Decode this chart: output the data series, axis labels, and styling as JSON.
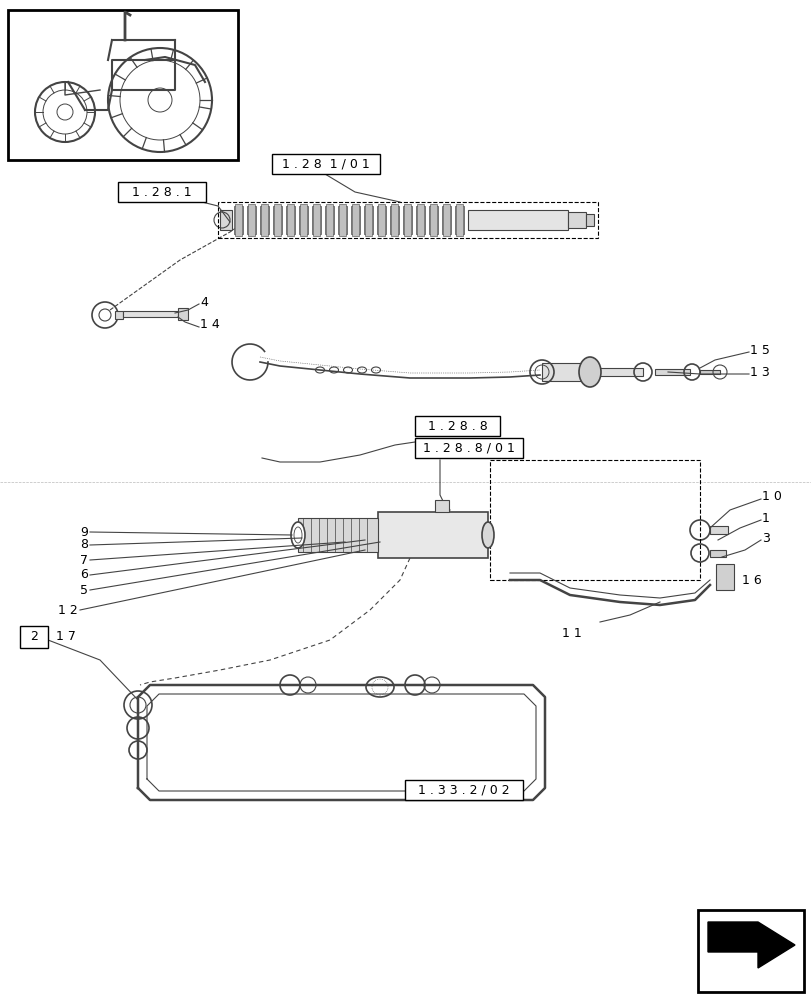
{
  "bg_color": "#ffffff",
  "line_color": "#444444",
  "box_color": "#000000",
  "labels": {
    "128_1_01": "1 . 2 8  1 / 0 1",
    "128_1": "1 . 2 8 . 1",
    "4": "4",
    "14": "1 4",
    "15": "1 5",
    "13": "1 3",
    "128_8": "1 . 2 8 . 8",
    "128_8_01": "1 . 2 8 . 8 / 0 1",
    "10": "1 0",
    "1": "1",
    "3": "3",
    "9": "9",
    "8": "8",
    "7": "7",
    "6": "6",
    "5": "5",
    "12": "1 2",
    "2_box": "2",
    "17": "1 7",
    "11": "1 1",
    "16": "1 6",
    "133_2_02": "1 . 3 3 . 2 / 0 2"
  }
}
